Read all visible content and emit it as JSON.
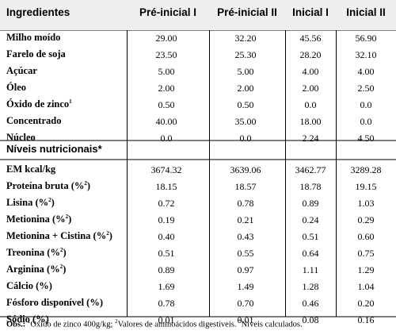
{
  "headers": [
    "Ingredientes",
    "Pré-inicial I",
    "Pré-inicial II",
    "Inicial I",
    "Inicial II"
  ],
  "ingredients": [
    {
      "label": "Milho moído",
      "sup": "",
      "values": [
        "29.00",
        "32.20",
        "45.56",
        "56.90"
      ]
    },
    {
      "label": "Farelo de soja",
      "sup": "",
      "values": [
        "23.50",
        "25.30",
        "28.20",
        "32.10"
      ]
    },
    {
      "label": "Açúcar",
      "sup": "",
      "values": [
        "5.00",
        "5.00",
        "4.00",
        "4.00"
      ]
    },
    {
      "label": "Óleo",
      "sup": "",
      "values": [
        "2.00",
        "2.00",
        "2.00",
        "2.50"
      ]
    },
    {
      "label": "Óxido de zinco",
      "sup": "1",
      "values": [
        "0.50",
        "0.50",
        "0.0",
        "0.0"
      ]
    },
    {
      "label": "Concentrado",
      "sup": "",
      "values": [
        "40.00",
        "35.00",
        "18.00",
        "0.0"
      ]
    },
    {
      "label": "Núcleo",
      "sup": "",
      "values": [
        "0.0",
        "0.0",
        "2.24",
        "4.50"
      ]
    }
  ],
  "section_title": "Níveis nutricionais*",
  "nutrients": [
    {
      "label": "EM kcal/kg",
      "sup": "",
      "values": [
        "3674.32",
        "3639.06",
        "3462.77",
        "3289.28"
      ]
    },
    {
      "label": "Proteína bruta (%",
      "sup": "2",
      "tail": ")",
      "values": [
        "18.15",
        "18.57",
        "18.78",
        "19.15"
      ]
    },
    {
      "label": "Lisina (%",
      "sup": "2",
      "tail": ")",
      "values": [
        "0.72",
        "0.78",
        "0.89",
        "1.03"
      ]
    },
    {
      "label": "Metionina (%",
      "sup": "2",
      "tail": ")",
      "values": [
        "0.19",
        "0.21",
        "0.24",
        "0.29"
      ]
    },
    {
      "label": "Metionina + Cistina (%",
      "sup": "2",
      "tail": ")",
      "values": [
        "0.40",
        "0.43",
        "0.51",
        "0.60"
      ]
    },
    {
      "label": "Treonina (%",
      "sup": "2",
      "tail": ")",
      "values": [
        "0.51",
        "0.55",
        "0.64",
        "0.75"
      ]
    },
    {
      "label": "Arginina (%",
      "sup": "2",
      "tail": ")",
      "values": [
        "0.89",
        "0.97",
        "1.11",
        "1.29"
      ]
    },
    {
      "label": "Cálcio (%)",
      "sup": "",
      "values": [
        "1.69",
        "1.49",
        "1.28",
        "1.04"
      ]
    },
    {
      "label": "Fósforo disponível (%)",
      "sup": "",
      "values": [
        "0.78",
        "0.70",
        "0.46",
        "0.20"
      ]
    },
    {
      "label": "Sódio (%)",
      "sup": "",
      "values": [
        "0.01",
        "0.01",
        "0.08",
        "0.16"
      ]
    }
  ],
  "footnote": {
    "lead": "Obs.:",
    "n1": "1",
    "t1": "Óxido de zinco 400g/kg; ",
    "n2": "2",
    "t2": "Valores de aminoácidos digestíveis. ",
    "n3": "*",
    "t3": "Níveis calculados."
  }
}
